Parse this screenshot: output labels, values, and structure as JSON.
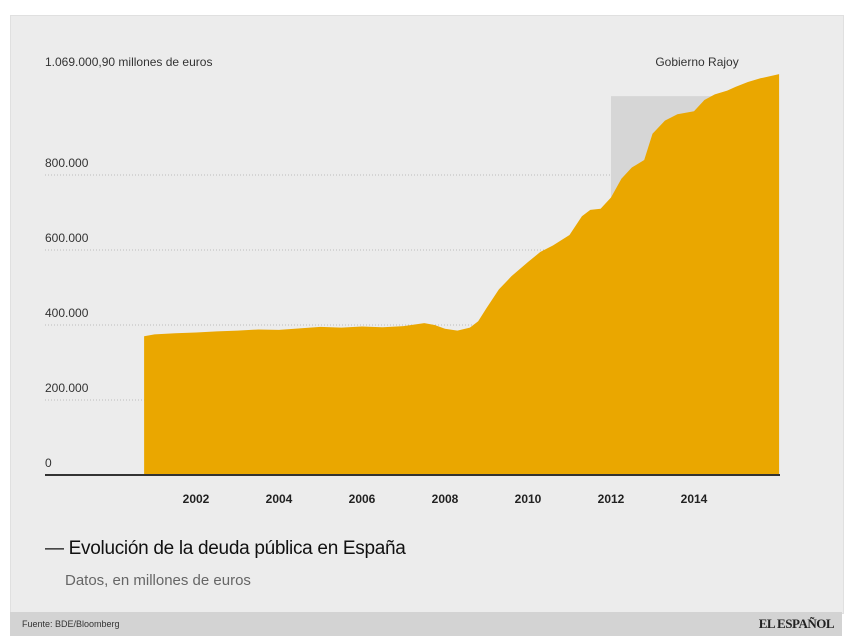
{
  "chart_data": {
    "type": "area",
    "title": "— Evolución de la deuda pública en España",
    "subtitle": "Datos, en millones de euros",
    "source": "Fuente: BDE/Bloomberg",
    "brand": "EL ESPAÑOL",
    "max_label": "1.069.000,90 millones de euros",
    "annotation": {
      "label": "Gobierno Rajoy",
      "start": 2012,
      "end": 2016.05
    },
    "xlim": [
      1996.2,
      2016.05
    ],
    "ylim": [
      0,
      1069000
    ],
    "x_ticks": [
      2002,
      2004,
      2006,
      2008,
      2010,
      2012,
      2014
    ],
    "x_tick_labels": [
      "2002",
      "2004",
      "2006",
      "2008",
      "2010",
      "2012",
      "2014"
    ],
    "y_ticks": [
      0,
      200000,
      400000,
      600000,
      800000
    ],
    "y_tick_labels": [
      "0",
      "200.000",
      "400.000",
      "600.000",
      "800.000"
    ],
    "grid": "horizontal dotted",
    "colors": {
      "area": "#eaa700",
      "shade": "#d6d6d6",
      "panel": "#ececec"
    },
    "series": [
      {
        "x": [
          2000.75,
          2001,
          2001.5,
          2002,
          2002.5,
          2003,
          2003.5,
          2004,
          2004.5,
          2005,
          2005.5,
          2006,
          2006.5,
          2007,
          2007.5,
          2007.75,
          2008,
          2008.3,
          2008.6,
          2008.8,
          2009,
          2009.3,
          2009.6,
          2010,
          2010.3,
          2010.6,
          2011,
          2011.3,
          2011.5,
          2011.75,
          2012,
          2012.25,
          2012.5,
          2012.8,
          2013,
          2013.3,
          2013.6,
          2014,
          2014.25,
          2014.5,
          2014.8,
          2015,
          2015.3,
          2015.6,
          2016.05
        ],
        "values": [
          370000,
          375000,
          378000,
          380000,
          383000,
          385000,
          388000,
          387000,
          391000,
          395000,
          393000,
          396000,
          394000,
          397000,
          405000,
          400000,
          390000,
          385000,
          393000,
          410000,
          445000,
          495000,
          530000,
          568000,
          595000,
          612000,
          640000,
          690000,
          707000,
          710000,
          740000,
          790000,
          820000,
          840000,
          910000,
          945000,
          962000,
          970000,
          1000000,
          1015000,
          1025000,
          1035000,
          1048000,
          1058000,
          1069000
        ]
      }
    ]
  }
}
